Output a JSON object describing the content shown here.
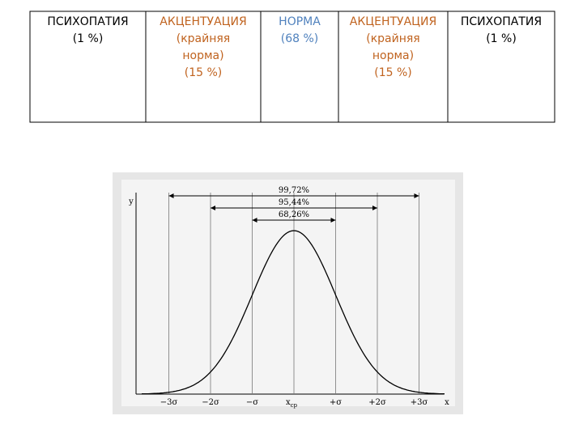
{
  "table": {
    "columns": [
      {
        "lines": [
          "ПСИХОПАТИЯ",
          "(1 %)"
        ]
      },
      {
        "lines": [
          "АКЦЕНТУАЦИЯ",
          "(крайняя",
          "норма)",
          "(15 %)"
        ]
      },
      {
        "lines": [
          "НОРМА",
          "(68 %)"
        ]
      },
      {
        "lines": [
          "АКЦЕНТУАЦИЯ",
          "(крайняя",
          "норма)",
          "(15 %)"
        ]
      },
      {
        "lines": [
          "ПСИХОПАТИЯ",
          "(1 %)"
        ]
      }
    ]
  },
  "figure": {
    "y_axis_label": "y",
    "x_axis_label": "x",
    "intervals": [
      "99,72%",
      "95,44%",
      "68,26%"
    ],
    "ticks": [
      "−3σ",
      "−2σ",
      "−σ",
      {
        "main": "x",
        "sub": "ср"
      },
      "+σ",
      "+2σ",
      "+3σ"
    ]
  }
}
